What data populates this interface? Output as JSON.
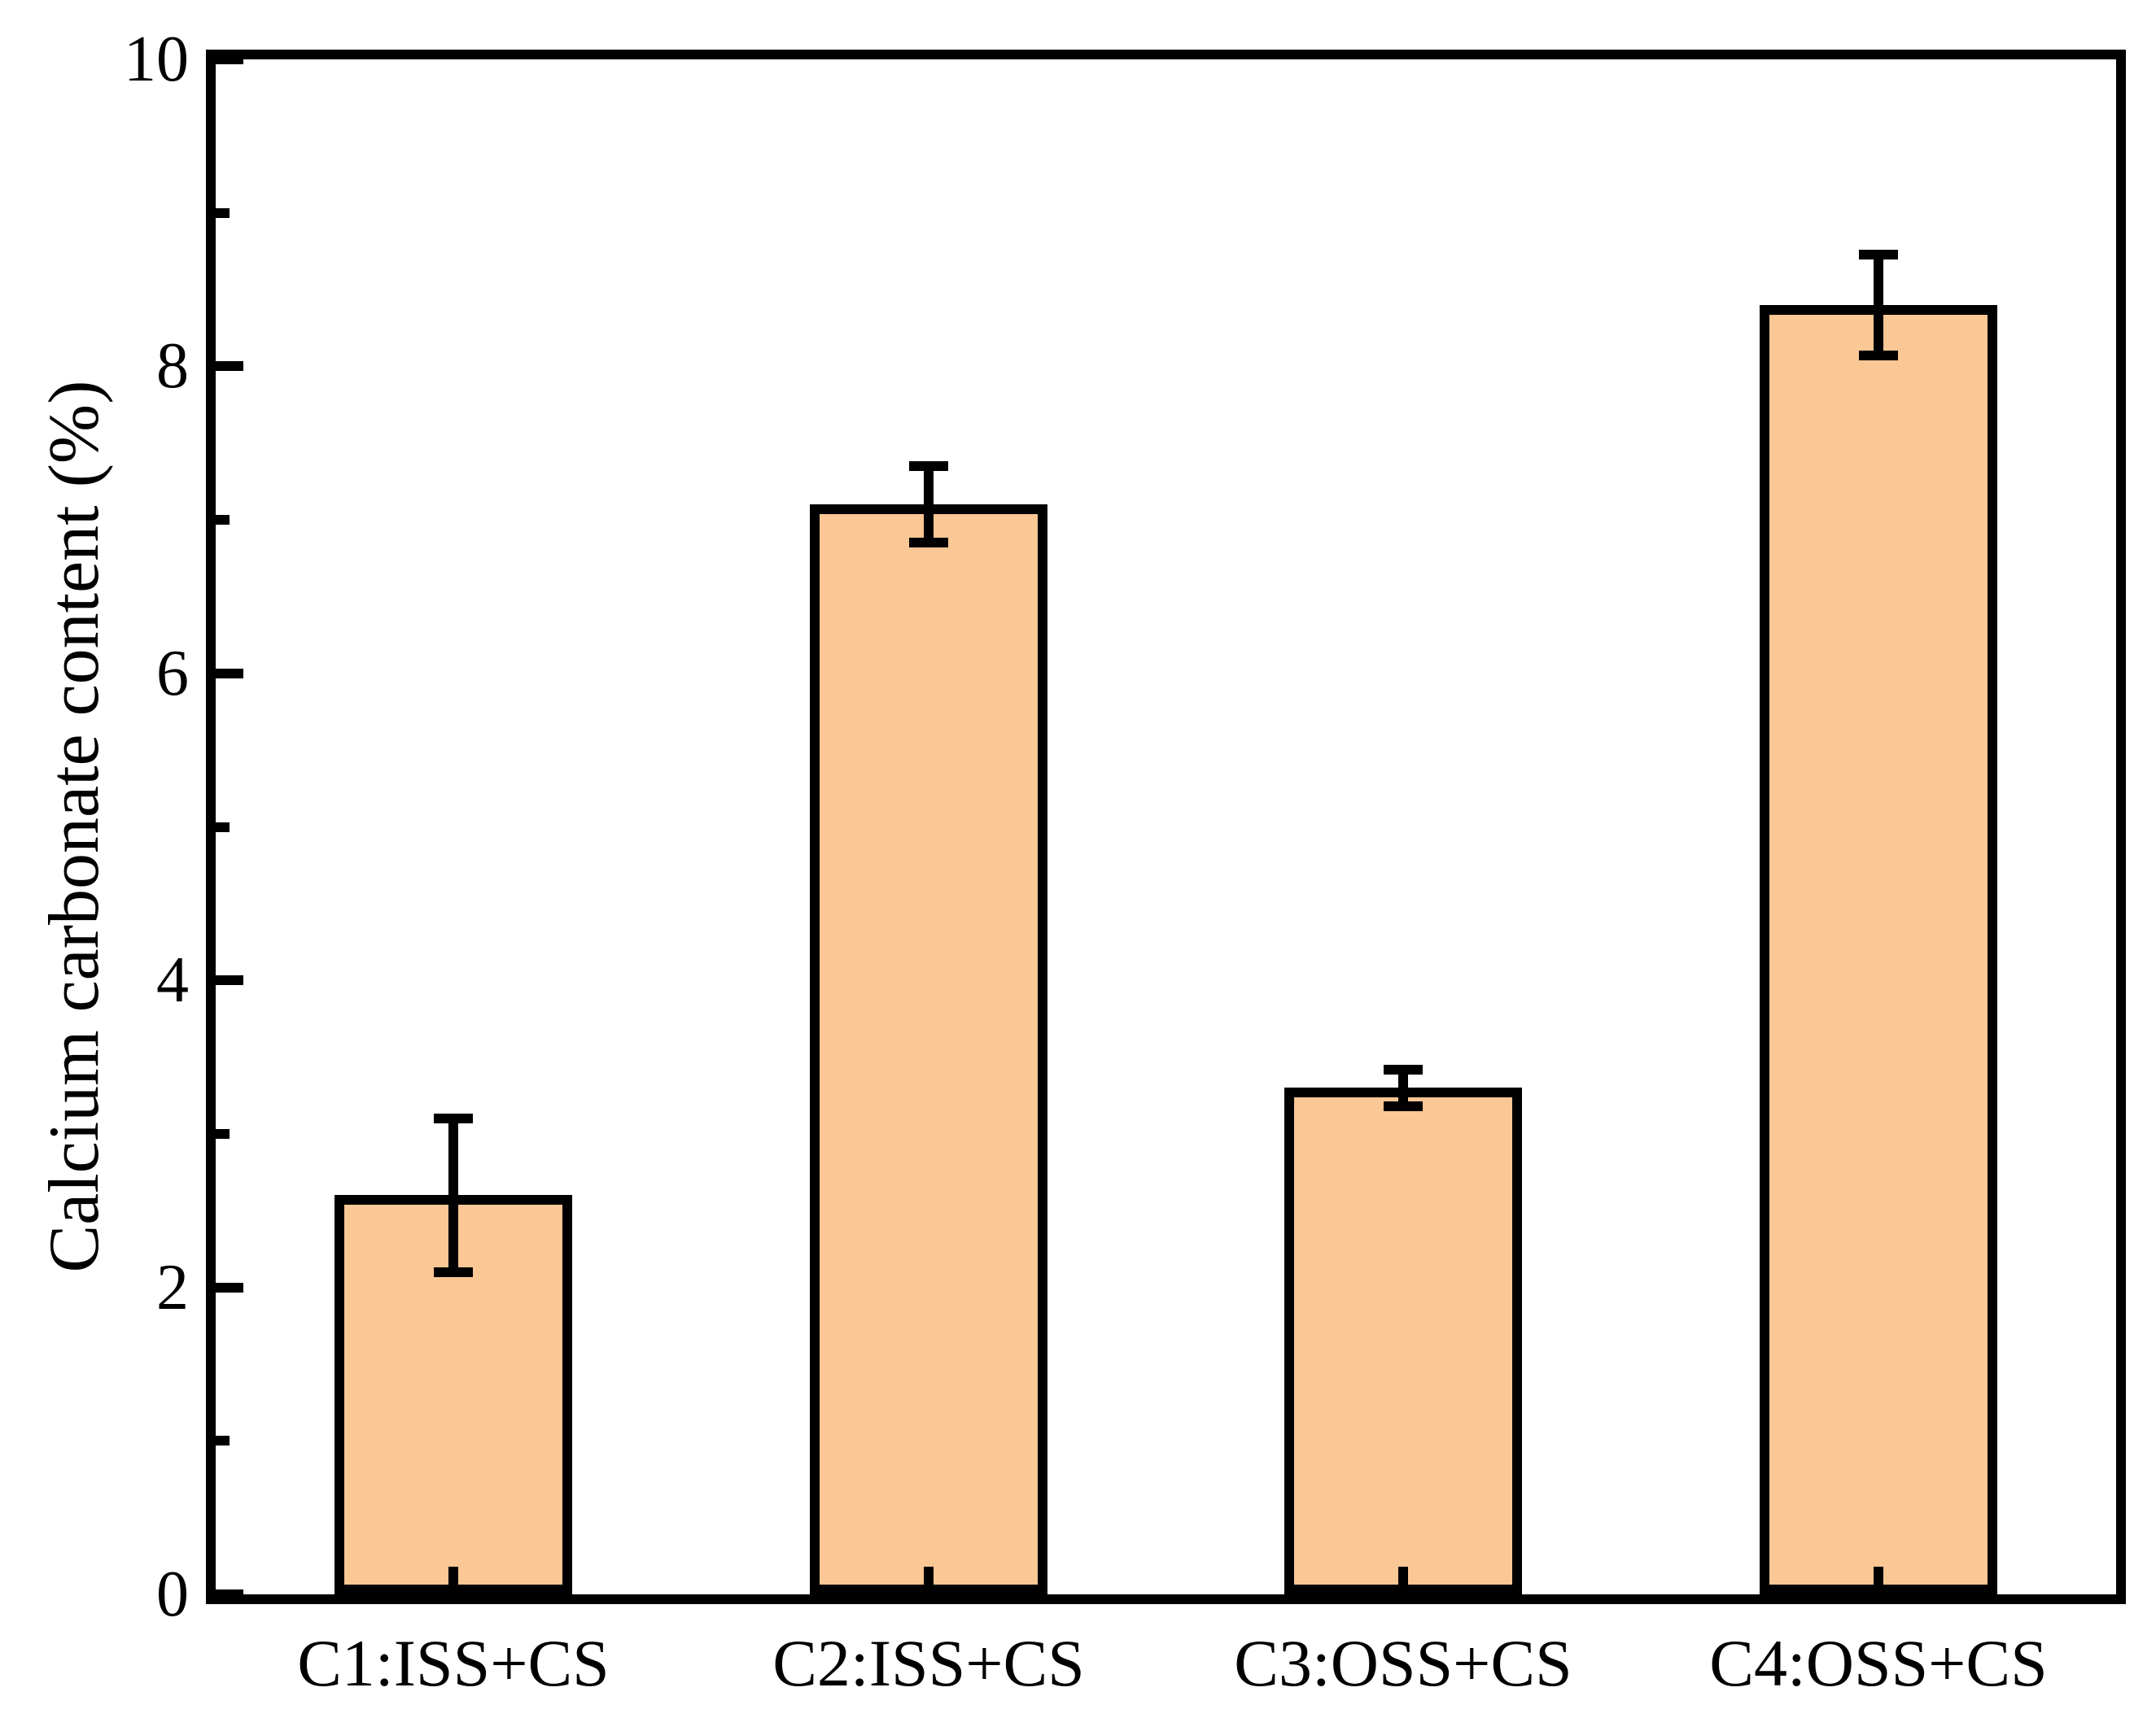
{
  "chart_data": {
    "type": "bar",
    "ylabel": "Calcium carbonate content (%)",
    "categories": [
      "C1:ISS+CS",
      "C2:ISS+CS",
      "C3:OSS+CS",
      "C4:OSS+CS"
    ],
    "values": [
      2.6,
      7.1,
      3.3,
      8.4
    ],
    "error_bars": [
      0.5,
      0.25,
      0.12,
      0.33
    ],
    "ylim": [
      0,
      10
    ],
    "y_major_ticks": [
      0,
      2,
      4,
      6,
      8,
      10
    ],
    "y_major_tick_labels": [
      "0",
      "2",
      "4",
      "6",
      "8",
      "10"
    ],
    "y_minor_ticks": [
      1,
      3,
      5,
      7,
      9
    ],
    "grid": false,
    "legend_position": "none",
    "bar_fill_color": "#FBC795",
    "bar_edge_color": "#000000",
    "error_bar_color": "#000000",
    "axis_color": "#000000",
    "background_color": "#FFFFFF"
  }
}
